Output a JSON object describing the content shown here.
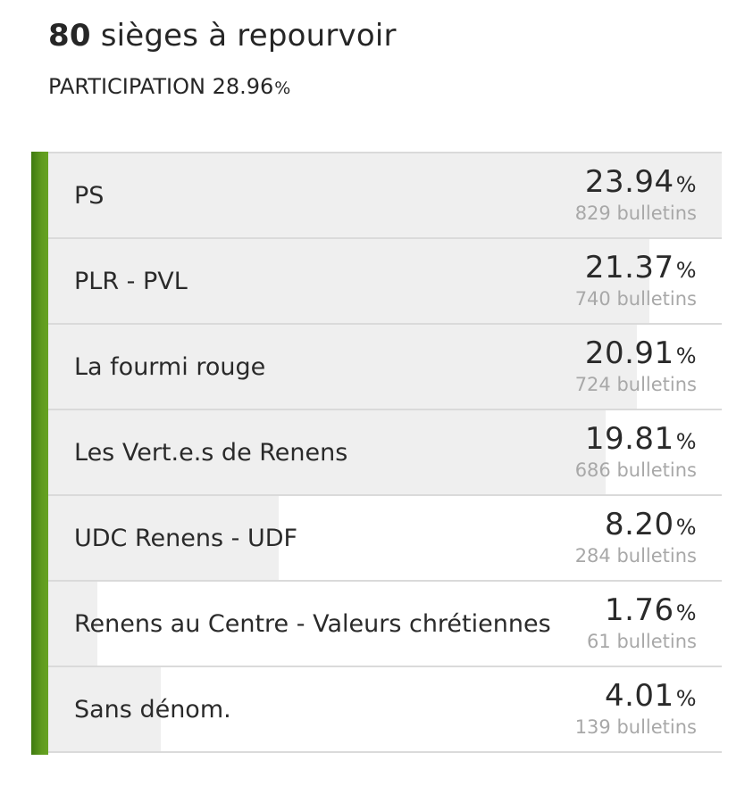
{
  "header": {
    "seats_number": "80",
    "seats_text": " sièges à repourvoir",
    "participation_label": "PARTICIPATION",
    "participation_value": "28.96",
    "participation_sign": "%"
  },
  "colors": {
    "accent": "#5f9a1e",
    "bar": "#efefef",
    "votes_text": "#a8a8a8"
  },
  "chart_data": {
    "type": "bar",
    "orientation": "horizontal",
    "max_value": 23.94,
    "categories": [
      "PS",
      "PLR - PVL",
      "La fourmi rouge",
      "Les Vert.e.s de Renens",
      "UDC Renens - UDF",
      "Renens au Centre - Valeurs chrétiennes",
      "Sans dénom."
    ],
    "values": [
      23.94,
      21.37,
      20.91,
      19.81,
      8.2,
      1.76,
      4.01
    ],
    "rows": [
      {
        "label": "PS",
        "pct": "23.94",
        "sign": "%",
        "votes": "829 bulletins",
        "value": 23.94
      },
      {
        "label": "PLR - PVL",
        "pct": "21.37",
        "sign": "%",
        "votes": "740 bulletins",
        "value": 21.37
      },
      {
        "label": "La fourmi rouge",
        "pct": "20.91",
        "sign": "%",
        "votes": "724 bulletins",
        "value": 20.91
      },
      {
        "label": "Les Vert.e.s de Renens",
        "pct": "19.81",
        "sign": "%",
        "votes": "686 bulletins",
        "value": 19.81
      },
      {
        "label": "UDC Renens - UDF",
        "pct": "8.20",
        "sign": "%",
        "votes": "284 bulletins",
        "value": 8.2
      },
      {
        "label": "Renens au Centre - Valeurs chrétiennes",
        "pct": "1.76",
        "sign": "%",
        "votes": "61 bulletins",
        "value": 1.76
      },
      {
        "label": "Sans dénom.",
        "pct": "4.01",
        "sign": "%",
        "votes": "139 bulletins",
        "value": 4.01
      }
    ]
  }
}
